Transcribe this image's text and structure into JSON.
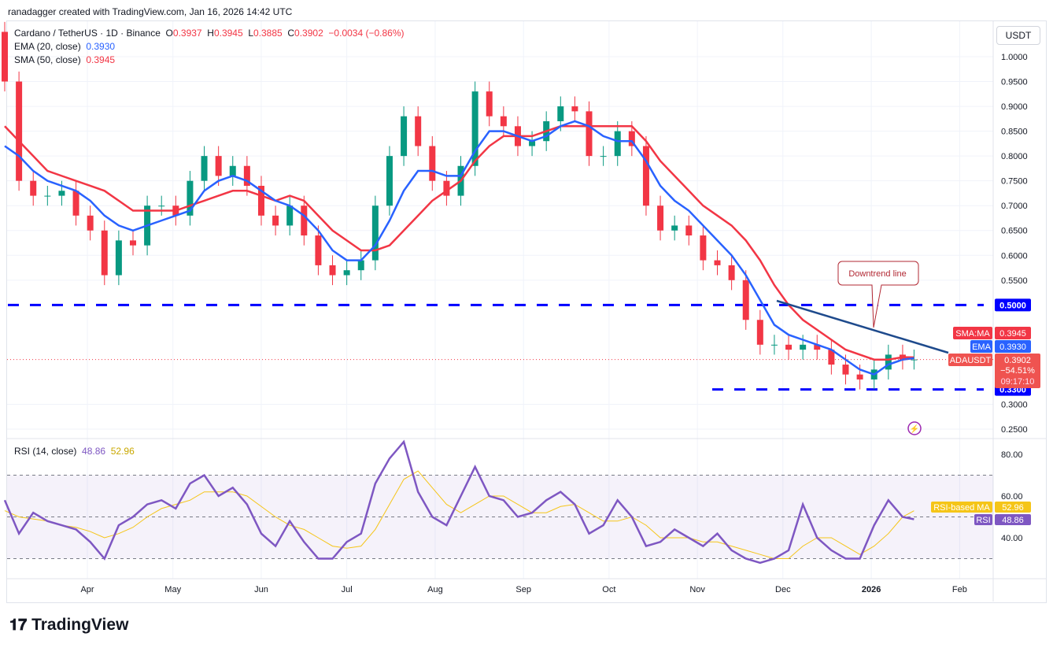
{
  "header": {
    "credit": "ranadagger created with TradingView.com, Jan 16, 2026 14:42 UTC"
  },
  "legend": {
    "symbol": "Cardano / TetherUS · 1D · Binance",
    "o_label": "O",
    "o": "0.3937",
    "h_label": "H",
    "h": "0.3945",
    "l_label": "L",
    "l": "0.3885",
    "c_label": "C",
    "c": "0.3902",
    "change": "−0.0034 (−0.86%)",
    "ema_label": "EMA (20, close)",
    "ema_value": "0.3930",
    "sma_label": "SMA (50, close)",
    "sma_value": "0.3945",
    "rsi_label": "RSI (14, close)",
    "rsi_value": "48.86",
    "rsi_ma_value": "52.96"
  },
  "currency": "USDT",
  "brand": "TradingView",
  "colors": {
    "up": "#089981",
    "down": "#f23645",
    "ema": "#2962ff",
    "sma": "#f23645",
    "rsi": "#7e57c2",
    "rsi_ma": "#f5c518",
    "levels": "#0000ff",
    "trend": "#1e4a8c"
  },
  "chart_data": [
    {
      "type": "candlestick",
      "title": "Cardano / TetherUS · 1D · Binance",
      "ylim": [
        0.25,
        1.02
      ],
      "y_ticks": [
        "1.0000",
        "0.9500",
        "0.9000",
        "0.8500",
        "0.8000",
        "0.7500",
        "0.7000",
        "0.6500",
        "0.6000",
        "0.5500",
        "0.5000",
        "0.3300",
        "0.3000",
        "0.2500"
      ],
      "x_ticks": [
        "Apr",
        "May",
        "Jun",
        "Jul",
        "Aug",
        "Sep",
        "Oct",
        "Nov",
        "Dec",
        "2026",
        "Feb"
      ],
      "x": [
        "2025-03-03",
        "2025-03-08",
        "2025-03-13",
        "2025-03-18",
        "2025-03-23",
        "2025-03-28",
        "2025-04-02",
        "2025-04-07",
        "2025-04-12",
        "2025-04-17",
        "2025-04-22",
        "2025-04-27",
        "2025-05-02",
        "2025-05-07",
        "2025-05-12",
        "2025-05-17",
        "2025-05-22",
        "2025-05-27",
        "2025-06-01",
        "2025-06-06",
        "2025-06-11",
        "2025-06-16",
        "2025-06-21",
        "2025-06-26",
        "2025-07-01",
        "2025-07-06",
        "2025-07-11",
        "2025-07-16",
        "2025-07-21",
        "2025-07-26",
        "2025-07-31",
        "2025-08-05",
        "2025-08-10",
        "2025-08-15",
        "2025-08-20",
        "2025-08-25",
        "2025-08-30",
        "2025-09-04",
        "2025-09-09",
        "2025-09-14",
        "2025-09-19",
        "2025-09-24",
        "2025-09-29",
        "2025-10-04",
        "2025-10-09",
        "2025-10-14",
        "2025-10-19",
        "2025-10-24",
        "2025-10-29",
        "2025-11-03",
        "2025-11-08",
        "2025-11-13",
        "2025-11-18",
        "2025-11-23",
        "2025-11-28",
        "2025-12-03",
        "2025-12-08",
        "2025-12-13",
        "2025-12-18",
        "2025-12-23",
        "2025-12-28",
        "2026-01-02",
        "2026-01-07",
        "2026-01-12",
        "2026-01-16"
      ],
      "close": [
        0.95,
        0.75,
        0.72,
        0.72,
        0.73,
        0.68,
        0.65,
        0.56,
        0.63,
        0.62,
        0.7,
        0.7,
        0.68,
        0.75,
        0.8,
        0.76,
        0.78,
        0.74,
        0.68,
        0.66,
        0.7,
        0.64,
        0.58,
        0.56,
        0.57,
        0.59,
        0.7,
        0.8,
        0.88,
        0.82,
        0.75,
        0.72,
        0.78,
        0.93,
        0.88,
        0.86,
        0.82,
        0.83,
        0.87,
        0.9,
        0.89,
        0.8,
        0.8,
        0.85,
        0.82,
        0.7,
        0.65,
        0.66,
        0.64,
        0.59,
        0.58,
        0.55,
        0.47,
        0.42,
        0.42,
        0.41,
        0.42,
        0.41,
        0.38,
        0.36,
        0.35,
        0.37,
        0.4,
        0.39,
        0.3902
      ],
      "ema20": [
        0.82,
        0.8,
        0.77,
        0.75,
        0.74,
        0.73,
        0.71,
        0.68,
        0.66,
        0.65,
        0.66,
        0.67,
        0.68,
        0.69,
        0.73,
        0.75,
        0.76,
        0.75,
        0.73,
        0.71,
        0.7,
        0.68,
        0.65,
        0.61,
        0.59,
        0.59,
        0.62,
        0.67,
        0.73,
        0.77,
        0.77,
        0.76,
        0.76,
        0.81,
        0.85,
        0.85,
        0.84,
        0.83,
        0.84,
        0.86,
        0.87,
        0.86,
        0.84,
        0.83,
        0.83,
        0.79,
        0.74,
        0.71,
        0.69,
        0.66,
        0.63,
        0.6,
        0.56,
        0.51,
        0.46,
        0.44,
        0.43,
        0.42,
        0.41,
        0.39,
        0.37,
        0.36,
        0.38,
        0.39,
        0.393
      ],
      "sma50": [
        0.86,
        0.83,
        0.8,
        0.77,
        0.76,
        0.75,
        0.74,
        0.73,
        0.71,
        0.69,
        0.69,
        0.69,
        0.69,
        0.7,
        0.71,
        0.72,
        0.73,
        0.73,
        0.72,
        0.71,
        0.72,
        0.71,
        0.68,
        0.65,
        0.63,
        0.61,
        0.61,
        0.62,
        0.65,
        0.68,
        0.71,
        0.73,
        0.75,
        0.79,
        0.82,
        0.84,
        0.84,
        0.84,
        0.85,
        0.86,
        0.86,
        0.86,
        0.86,
        0.86,
        0.86,
        0.83,
        0.79,
        0.76,
        0.73,
        0.7,
        0.68,
        0.66,
        0.63,
        0.59,
        0.54,
        0.5,
        0.47,
        0.45,
        0.43,
        0.41,
        0.4,
        0.39,
        0.39,
        0.395,
        0.3945
      ],
      "horizontal_levels": [
        0.5,
        0.33
      ],
      "annotations": [
        {
          "text": "Downtrend line"
        }
      ],
      "labels": {
        "sma": "SMA:MA",
        "ema": "EMA",
        "symbol": "ADAUSDT",
        "pct": "−54.51%",
        "countdown": "09:17:10"
      }
    },
    {
      "type": "line",
      "title": "RSI (14, close)",
      "ylim": [
        20,
        90
      ],
      "y_ticks": [
        "80.00",
        "60.00",
        "40.00"
      ],
      "bands": [
        30,
        70
      ],
      "rsi": [
        58,
        42,
        52,
        48,
        46,
        44,
        38,
        30,
        46,
        50,
        56,
        58,
        54,
        66,
        70,
        60,
        64,
        56,
        42,
        36,
        48,
        38,
        30,
        30,
        38,
        42,
        66,
        78,
        86,
        62,
        50,
        46,
        60,
        74,
        60,
        58,
        50,
        52,
        58,
        62,
        56,
        42,
        46,
        58,
        50,
        36,
        38,
        44,
        40,
        36,
        42,
        34,
        30,
        28,
        30,
        34,
        56,
        40,
        34,
        30,
        30,
        46,
        58,
        50,
        48.86
      ],
      "rsi_ma": [
        53,
        50,
        49,
        48,
        46,
        45,
        43,
        40,
        42,
        45,
        50,
        54,
        56,
        58,
        62,
        62,
        62,
        60,
        55,
        50,
        46,
        44,
        40,
        36,
        35,
        36,
        44,
        56,
        68,
        72,
        64,
        56,
        52,
        56,
        60,
        60,
        56,
        52,
        52,
        55,
        56,
        52,
        48,
        48,
        50,
        46,
        40,
        40,
        40,
        38,
        38,
        36,
        34,
        32,
        30,
        30,
        36,
        40,
        40,
        36,
        32,
        36,
        42,
        50,
        52.96
      ],
      "labels": {
        "rsi_ma": "RSI-based MA",
        "rsi": "RSI"
      }
    }
  ]
}
